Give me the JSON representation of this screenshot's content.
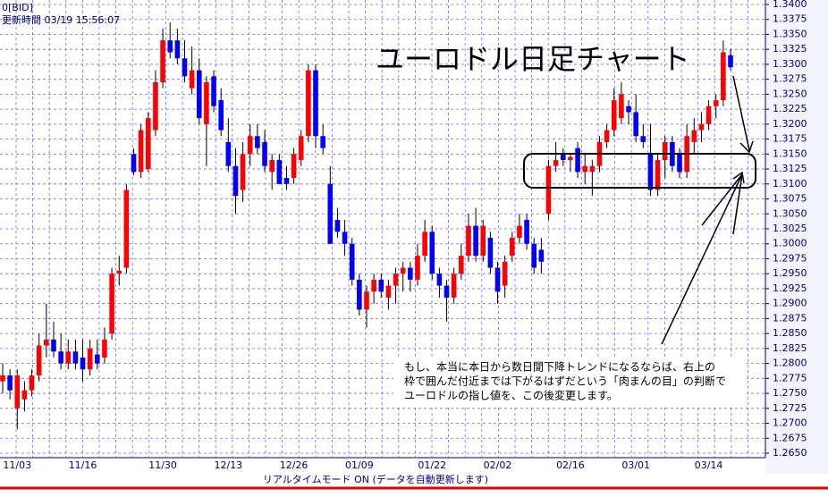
{
  "header": {
    "source": "0[BID]",
    "updated": "更新時間 03/19 15:56:07"
  },
  "chart_data": {
    "type": "candlestick",
    "title": "ユーロドル日足チャート",
    "up_color": "#ff0000",
    "down_color": "#0000ff",
    "grid": true,
    "ylim": [
      1.265,
      1.34
    ],
    "yticks": [
      {
        "value": 1.265,
        "label": "1.2650"
      },
      {
        "value": 1.2675,
        "label": "1.2675"
      },
      {
        "value": 1.27,
        "label": "1.2700"
      },
      {
        "value": 1.2725,
        "label": "1.2725"
      },
      {
        "value": 1.275,
        "label": "1.2750"
      },
      {
        "value": 1.2775,
        "label": "1.2775"
      },
      {
        "value": 1.28,
        "label": "1.2800"
      },
      {
        "value": 1.2825,
        "label": "1.2825"
      },
      {
        "value": 1.285,
        "label": "1.2850"
      },
      {
        "value": 1.2875,
        "label": "1.2875"
      },
      {
        "value": 1.29,
        "label": "1.2900"
      },
      {
        "value": 1.2925,
        "label": "1.2925"
      },
      {
        "value": 1.295,
        "label": "1.2950"
      },
      {
        "value": 1.2975,
        "label": "1.2975"
      },
      {
        "value": 1.3,
        "label": "1.3000"
      },
      {
        "value": 1.3025,
        "label": "1.3025"
      },
      {
        "value": 1.305,
        "label": "1.3050"
      },
      {
        "value": 1.3075,
        "label": "1.3075"
      },
      {
        "value": 1.31,
        "label": "1.3100"
      },
      {
        "value": 1.3125,
        "label": "1.3125"
      },
      {
        "value": 1.315,
        "label": "1.3150"
      },
      {
        "value": 1.3175,
        "label": "1.3175"
      },
      {
        "value": 1.32,
        "label": "1.3200"
      },
      {
        "value": 1.3225,
        "label": "1.3225"
      },
      {
        "value": 1.325,
        "label": "1.3250"
      },
      {
        "value": 1.3275,
        "label": "1.3275"
      },
      {
        "value": 1.33,
        "label": "1.3300"
      },
      {
        "value": 1.3325,
        "label": "1.3325"
      },
      {
        "value": 1.335,
        "label": "1.3350"
      },
      {
        "value": 1.3375,
        "label": "1.3375"
      },
      {
        "value": 1.34,
        "label": "1.3400"
      }
    ],
    "categories": [
      null,
      null,
      "11/03",
      null,
      null,
      null,
      null,
      null,
      null,
      null,
      null,
      "11/16",
      null,
      null,
      null,
      null,
      null,
      null,
      null,
      null,
      null,
      null,
      "11/30",
      null,
      null,
      null,
      null,
      null,
      null,
      null,
      null,
      "12/13",
      null,
      null,
      null,
      null,
      null,
      null,
      null,
      null,
      "12/26",
      null,
      null,
      null,
      null,
      null,
      null,
      null,
      null,
      "01/09",
      null,
      null,
      null,
      null,
      null,
      null,
      null,
      null,
      null,
      "01/22",
      null,
      null,
      null,
      null,
      null,
      null,
      null,
      null,
      "02/02",
      null,
      null,
      null,
      null,
      null,
      null,
      null,
      null,
      null,
      "02/16",
      null,
      null,
      null,
      null,
      null,
      null,
      null,
      null,
      "03/01",
      null,
      null,
      null,
      null,
      null,
      null,
      null,
      null,
      null,
      "03/14",
      null,
      null,
      null
    ],
    "open": [
      1.277,
      1.278,
      1.2725,
      1.274,
      1.2755,
      1.278,
      1.283,
      1.284,
      1.282,
      1.28,
      1.282,
      1.281,
      1.279,
      1.2815,
      1.281,
      1.285,
      1.295,
      1.296,
      1.315,
      1.312,
      1.3125,
      1.319,
      1.327,
      1.334,
      1.334,
      1.331,
      1.326,
      1.329,
      1.32,
      1.328,
      1.324,
      1.317,
      1.313,
      1.309,
      1.315,
      1.318,
      1.317,
      1.312,
      1.314,
      1.311,
      1.311,
      1.314,
      1.318,
      1.329,
      1.318,
      1.31,
      1.304,
      1.302,
      1.3,
      1.294,
      1.289,
      1.292,
      1.294,
      1.291,
      1.293,
      1.295,
      1.296,
      1.294,
      1.298,
      1.302,
      1.295,
      1.293,
      1.291,
      1.295,
      1.298,
      1.303,
      1.298,
      1.301,
      1.296,
      1.293,
      1.298,
      1.301,
      1.304,
      1.3,
      1.299,
      1.305,
      1.313,
      1.315,
      1.314,
      1.316,
      1.312,
      1.312,
      1.313,
      1.317,
      1.319,
      1.321,
      1.323,
      1.322,
      1.318,
      1.315,
      1.309,
      1.314,
      1.317,
      1.315,
      1.312,
      1.317,
      1.319,
      1.32,
      1.323,
      1.324,
      1.3315
    ],
    "high": [
      1.28,
      1.279,
      1.279,
      1.277,
      1.279,
      1.285,
      1.29,
      1.287,
      1.285,
      1.284,
      1.284,
      1.284,
      1.284,
      1.284,
      1.286,
      1.296,
      1.298,
      1.31,
      1.316,
      1.32,
      1.322,
      1.329,
      1.336,
      1.337,
      1.336,
      1.334,
      1.333,
      1.331,
      1.328,
      1.329,
      1.326,
      1.321,
      1.316,
      1.317,
      1.32,
      1.32,
      1.319,
      1.315,
      1.315,
      1.313,
      1.316,
      1.319,
      1.33,
      1.33,
      1.32,
      1.313,
      1.306,
      1.304,
      1.301,
      1.295,
      1.293,
      1.295,
      1.295,
      1.294,
      1.296,
      1.297,
      1.297,
      1.3,
      1.304,
      1.303,
      1.296,
      1.294,
      1.296,
      1.3,
      1.305,
      1.306,
      1.304,
      1.302,
      1.297,
      1.298,
      1.302,
      1.305,
      1.305,
      1.301,
      1.301,
      1.314,
      1.317,
      1.316,
      1.315,
      1.317,
      1.315,
      1.314,
      1.318,
      1.32,
      1.326,
      1.327,
      1.324,
      1.325,
      1.32,
      1.32,
      1.315,
      1.318,
      1.318,
      1.316,
      1.32,
      1.321,
      1.322,
      1.324,
      1.325,
      1.334,
      1.3325
    ],
    "low": [
      1.275,
      1.274,
      1.269,
      1.272,
      1.2745,
      1.277,
      1.281,
      1.281,
      1.279,
      1.279,
      1.279,
      1.277,
      1.278,
      1.279,
      1.28,
      1.284,
      1.293,
      1.295,
      1.3115,
      1.311,
      1.312,
      1.318,
      1.326,
      1.331,
      1.33,
      1.327,
      1.325,
      1.32,
      1.313,
      1.322,
      1.318,
      1.312,
      1.305,
      1.307,
      1.313,
      1.315,
      1.312,
      1.309,
      1.31,
      1.309,
      1.31,
      1.313,
      1.317,
      1.316,
      1.315,
      1.3,
      1.301,
      1.298,
      1.293,
      1.288,
      1.286,
      1.29,
      1.291,
      1.289,
      1.29,
      1.292,
      1.292,
      1.293,
      1.297,
      1.294,
      1.291,
      1.287,
      1.29,
      1.294,
      1.297,
      1.297,
      1.297,
      1.295,
      1.29,
      1.291,
      1.297,
      1.3,
      1.299,
      1.295,
      1.295,
      1.304,
      1.312,
      1.313,
      1.312,
      1.311,
      1.31,
      1.308,
      1.312,
      1.316,
      1.318,
      1.32,
      1.32,
      1.317,
      1.316,
      1.308,
      1.308,
      1.311,
      1.312,
      1.311,
      1.311,
      1.315,
      1.317,
      1.319,
      1.321,
      1.323,
      1.329
    ],
    "close": [
      1.278,
      1.2755,
      1.278,
      1.2755,
      1.278,
      1.283,
      1.284,
      1.282,
      1.28,
      1.282,
      1.28,
      1.279,
      1.2825,
      1.28,
      1.284,
      1.295,
      1.2955,
      1.309,
      1.312,
      1.319,
      1.321,
      1.327,
      1.334,
      1.332,
      1.331,
      1.328,
      1.329,
      1.321,
      1.327,
      1.323,
      1.319,
      1.313,
      1.308,
      1.315,
      1.318,
      1.316,
      1.313,
      1.314,
      1.31,
      1.31,
      1.315,
      1.318,
      1.329,
      1.318,
      1.316,
      1.3,
      1.302,
      1.3,
      1.294,
      1.289,
      1.292,
      1.294,
      1.292,
      1.293,
      1.295,
      1.296,
      1.294,
      1.298,
      1.302,
      1.295,
      1.293,
      1.291,
      1.295,
      1.298,
      1.303,
      1.298,
      1.303,
      1.296,
      1.292,
      1.297,
      1.301,
      1.303,
      1.3,
      1.296,
      1.297,
      1.313,
      1.314,
      1.314,
      1.3145,
      1.312,
      1.313,
      1.313,
      1.317,
      1.319,
      1.324,
      1.325,
      1.322,
      1.318,
      1.317,
      1.309,
      1.314,
      1.317,
      1.313,
      1.312,
      1.318,
      1.319,
      1.32,
      1.323,
      1.324,
      1.332,
      1.3295
    ]
  },
  "annotation": [
    "もし、本当に本日から数日間下降トレンドになるならば、右上の",
    "枠で囲んだ付近までは下がるはずだという「肉まんの目」の判断で",
    "ユーロドルの指し値を、この後変更します。"
  ],
  "footer": "リアルタイムモード ON (データを自動更新します)"
}
